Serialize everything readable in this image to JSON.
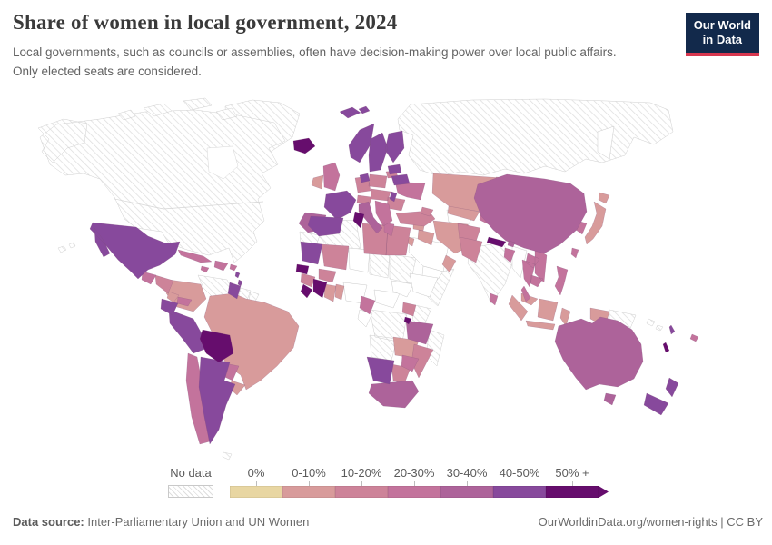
{
  "header": {
    "title": "Share of women in local government, 2024",
    "subtitle_line1": "Local governments, such as councils or assemblies, often have decision-making power over local public affairs.",
    "subtitle_line2": "Only elected seats are considered.",
    "logo": {
      "line1": "Our World",
      "line2": "in Data",
      "bg_color": "#12294b",
      "accent_color": "#d7374f"
    }
  },
  "legend": {
    "no_data_label": "No data",
    "buckets": [
      {
        "label": "0%",
        "color": "#e8d6a2"
      },
      {
        "label": "0-10%",
        "color": "#d89b9b"
      },
      {
        "label": "10-20%",
        "color": "#cd8399"
      },
      {
        "label": "20-30%",
        "color": "#c3739c"
      },
      {
        "label": "30-40%",
        "color": "#ad639a"
      },
      {
        "label": "40-50%",
        "color": "#87499c"
      },
      {
        "label": "50% +",
        "color": "#660d6d"
      }
    ]
  },
  "map": {
    "type": "choropleth-world-map",
    "hatch_line_color": "#dedede",
    "border_color": "#cfcfcf",
    "ocean_color": "#ffffff",
    "values_read_from_map": {
      "no_data": [
        "United States",
        "Canada",
        "Greenland",
        "Russia",
        "India",
        "Venezuela",
        "Algeria",
        "Sudan",
        "Somalia",
        "Kenya",
        "DR Congo",
        "Angola",
        "Madagascar",
        "Papua New Guinea"
      ],
      "0-10%": [
        "Brazil",
        "Colombia",
        "Kazakhstan",
        "Mongolia",
        "Japan",
        "Indonesia",
        "Iran",
        "Zambia",
        "Ghana",
        "Ireland"
      ],
      "10-20%": [
        "Libya",
        "Egypt",
        "Mali",
        "Germany",
        "Poland",
        "Romania",
        "Pakistan",
        "Uganda",
        "Mozambique"
      ],
      "20-30%": [
        "Chile",
        "United Kingdom",
        "Ukraine",
        "Turkey",
        "Thailand",
        "Vietnam",
        "Philippines",
        "Cuba",
        "Bangladesh",
        "Greece"
      ],
      "30-40%": [
        "China",
        "Australia",
        "Tanzania",
        "Morocco",
        "South Africa",
        "Italy"
      ],
      "40-50%": [
        "Mexico",
        "Peru",
        "Ecuador",
        "Argentina",
        "France",
        "Spain",
        "Norway",
        "Sweden",
        "Finland",
        "Belarus",
        "Mauritania",
        "Namibia",
        "New Zealand"
      ],
      "50% +": [
        "Bolivia",
        "Iceland",
        "Tunisia",
        "Nepal",
        "Senegal",
        "Côte d'Ivoire",
        "New Caledonia"
      ]
    }
  },
  "footer": {
    "source_label": "Data source:",
    "source_text": " Inter-Parliamentary Union and UN Women",
    "right_text": "OurWorldinData.org/women-rights | CC BY"
  }
}
